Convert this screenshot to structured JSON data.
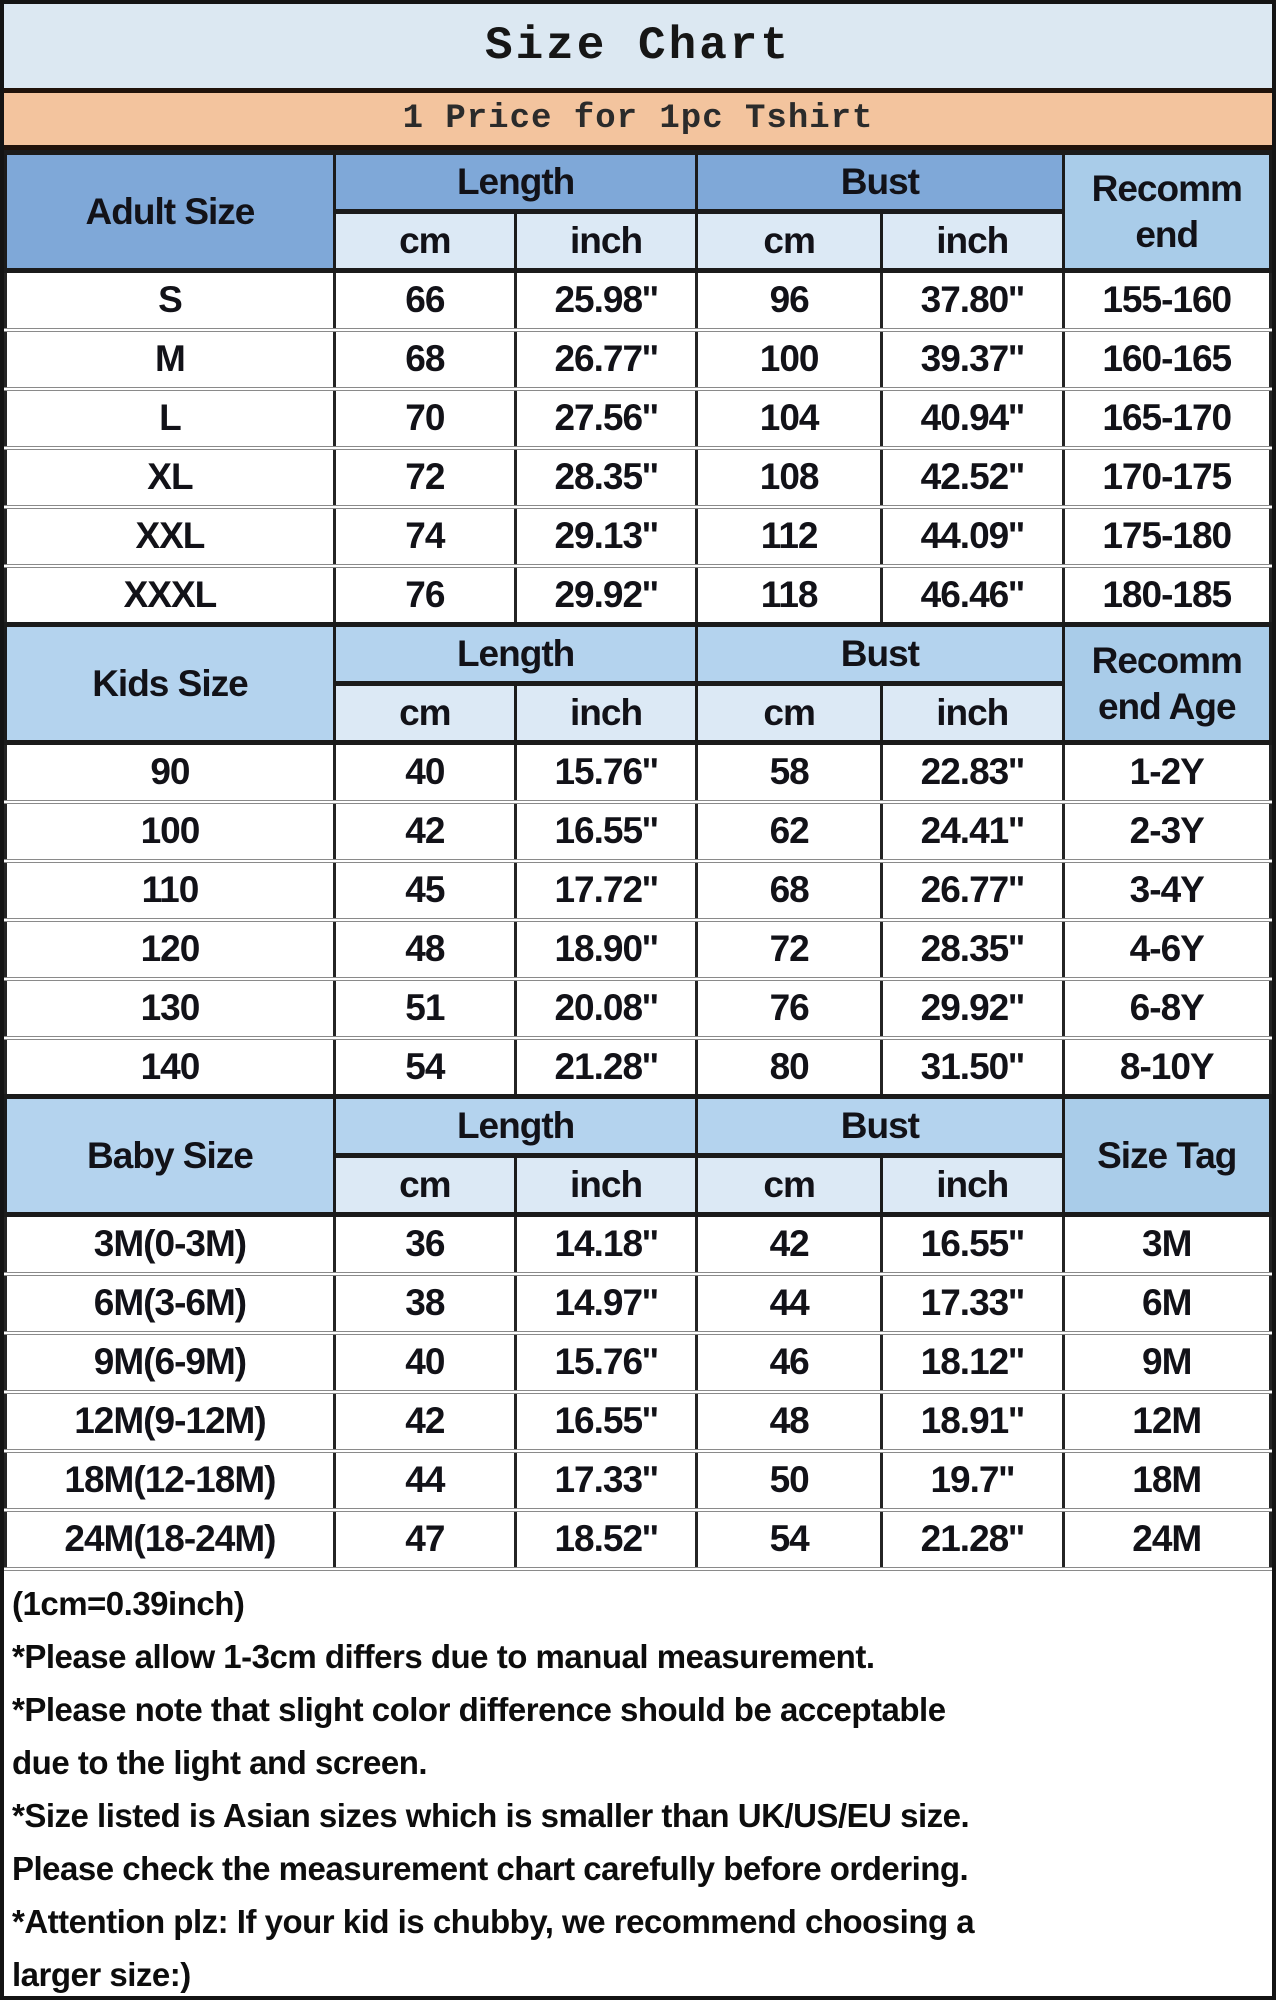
{
  "title": "Size Chart",
  "price_note": "1 Price for 1pc Tshirt",
  "table": {
    "group_headers": [
      "Length",
      "Bust"
    ],
    "unit_headers": [
      "cm",
      "inch",
      "cm",
      "inch"
    ],
    "sections": [
      {
        "label": "Adult Size",
        "last_col": "Recomm\nend",
        "theme": "dark",
        "rows": [
          [
            "S",
            "66",
            "25.98''",
            "96",
            "37.80''",
            "155-160"
          ],
          [
            "M",
            "68",
            "26.77''",
            "100",
            "39.37''",
            "160-165"
          ],
          [
            "L",
            "70",
            "27.56''",
            "104",
            "40.94''",
            "165-170"
          ],
          [
            "XL",
            "72",
            "28.35''",
            "108",
            "42.52''",
            "170-175"
          ],
          [
            "XXL",
            "74",
            "29.13''",
            "112",
            "44.09''",
            "175-180"
          ],
          [
            "XXXL",
            "76",
            "29.92''",
            "118",
            "46.46''",
            "180-185"
          ]
        ]
      },
      {
        "label": "Kids Size",
        "last_col": "Recomm\nend Age",
        "theme": "light",
        "rows": [
          [
            "90",
            "40",
            "15.76''",
            "58",
            "22.83''",
            "1-2Y"
          ],
          [
            "100",
            "42",
            "16.55''",
            "62",
            "24.41''",
            "2-3Y"
          ],
          [
            "110",
            "45",
            "17.72''",
            "68",
            "26.77''",
            "3-4Y"
          ],
          [
            "120",
            "48",
            "18.90''",
            "72",
            "28.35''",
            "4-6Y"
          ],
          [
            "130",
            "51",
            "20.08''",
            "76",
            "29.92''",
            "6-8Y"
          ],
          [
            "140",
            "54",
            "21.28''",
            "80",
            "31.50''",
            "8-10Y"
          ]
        ]
      },
      {
        "label": "Baby Size",
        "last_col": "Size Tag",
        "theme": "light",
        "rows": [
          [
            "3M(0-3M)",
            "36",
            "14.18''",
            "42",
            "16.55''",
            "3M"
          ],
          [
            "6M(3-6M)",
            "38",
            "14.97''",
            "44",
            "17.33''",
            "6M"
          ],
          [
            "9M(6-9M)",
            "40",
            "15.76''",
            "46",
            "18.12''",
            "9M"
          ],
          [
            "12M(9-12M)",
            "42",
            "16.55''",
            "48",
            "18.91''",
            "12M"
          ],
          [
            "18M(12-18M)",
            "44",
            "17.33''",
            "50",
            "19.7''",
            "18M"
          ],
          [
            "24M(18-24M)",
            "47",
            "18.52''",
            "54",
            "21.28''",
            "24M"
          ]
        ]
      }
    ]
  },
  "notes": [
    "(1cm=0.39inch)",
    "*Please allow 1-3cm differs due to manual measurement.",
    "*Please note that slight color difference should be acceptable\ndue to the light and screen.",
    "*Size listed is Asian sizes which is smaller than UK/US/EU size.\nPlease check the measurement chart carefully before ordering.",
    "*Attention plz: If your kid is chubby, we recommend choosing a\nlarger size:)"
  ],
  "colors": {
    "title_bg": "#dce8f2",
    "price_bg": "#f3c49e",
    "adult_header_blue": "#7fa8d8",
    "kids_baby_header_blue": "#b4d3ee",
    "last_col_blue": "#a9cce9",
    "unit_row_blue": "#dce9f5",
    "divider_dark": "#20130b"
  }
}
